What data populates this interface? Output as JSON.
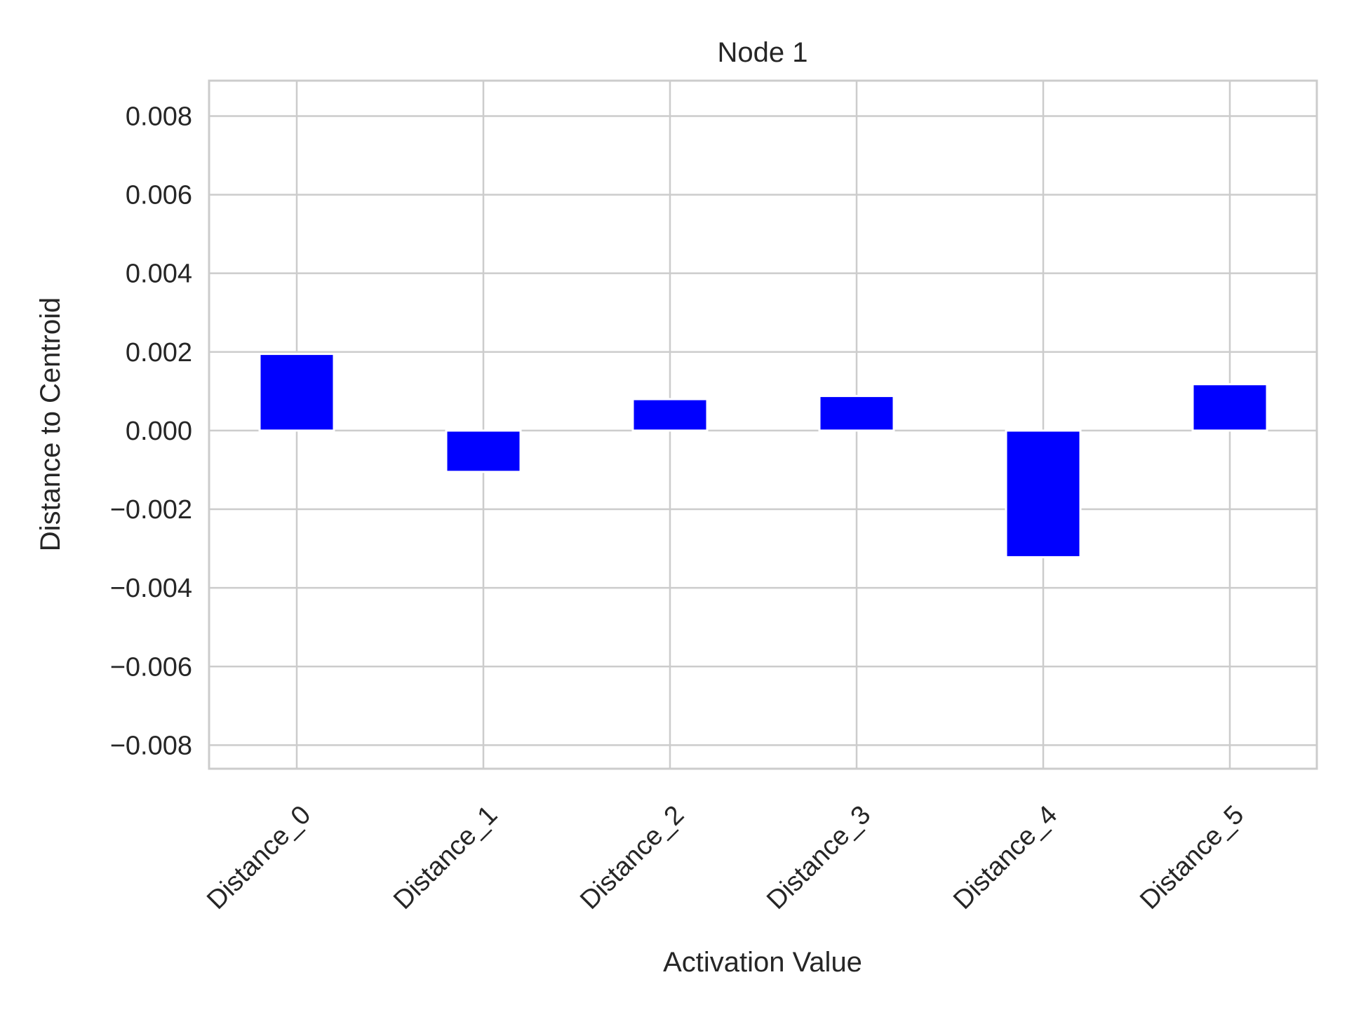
{
  "chart_data": {
    "type": "bar",
    "title": "Node 1",
    "xlabel": "Activation Value",
    "ylabel": "Distance to Centroid",
    "categories": [
      "Distance_0",
      "Distance_1",
      "Distance_2",
      "Distance_3",
      "Distance_4",
      "Distance_5"
    ],
    "values": [
      0.00195,
      -0.00105,
      0.0008,
      0.00088,
      -0.00322,
      0.00118
    ],
    "ylim": [
      -0.0086,
      0.0089
    ],
    "yticks": [
      0.008,
      0.006,
      0.004,
      0.002,
      0.0,
      -0.002,
      -0.004,
      -0.006,
      -0.008
    ],
    "ytick_labels": [
      "0.008",
      "0.006",
      "0.004",
      "0.002",
      "0.000",
      "−0.002",
      "−0.004",
      "−0.006",
      "−0.008"
    ],
    "bar_color": "#0000ff",
    "grid": true,
    "xtick_rotation": "45 degrees"
  }
}
